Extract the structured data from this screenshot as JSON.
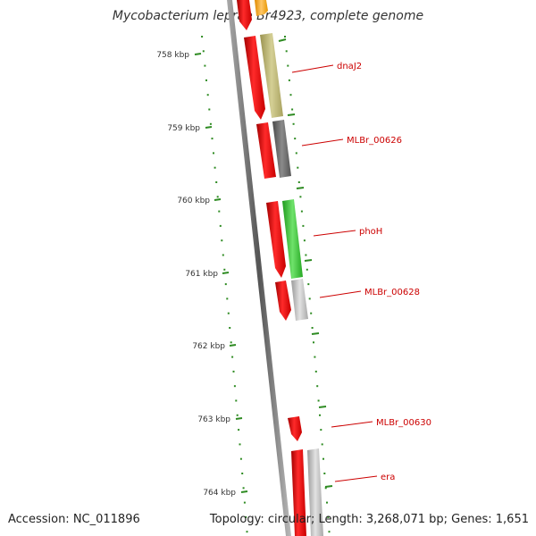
{
  "map": {
    "title": "Mycobacterium leprae Br4923, complete genome",
    "accession_text": "Accession: NC_011896",
    "genome_info_text": "Topology: circular; Length: 3,268,071 bp; Genes: 1,651"
  },
  "ruler": {
    "ticks": [
      {
        "label": "758 kbp"
      },
      {
        "label": "759 kbp"
      },
      {
        "label": "760 kbp"
      },
      {
        "label": "761 kbp"
      },
      {
        "label": "762 kbp"
      },
      {
        "label": "763 kbp"
      },
      {
        "label": "764 kbp"
      }
    ],
    "color": "#2e8b22"
  },
  "genes": [
    {
      "name": "dnaJ2"
    },
    {
      "name": "MLBr_00626"
    },
    {
      "name": "phoH"
    },
    {
      "name": "MLBr_00628"
    },
    {
      "name": "MLBr_00630"
    },
    {
      "name": "era"
    }
  ],
  "colors": {
    "cds": "#e8131b",
    "gene_khaki": "#b9b26a",
    "gene_dark_grey": "#666666",
    "gene_green": "#36c234",
    "gene_light_grey": "#b8b8b8",
    "gene_orange": "#ffa31a",
    "backbone": "#888888",
    "label": "#cc0000"
  }
}
